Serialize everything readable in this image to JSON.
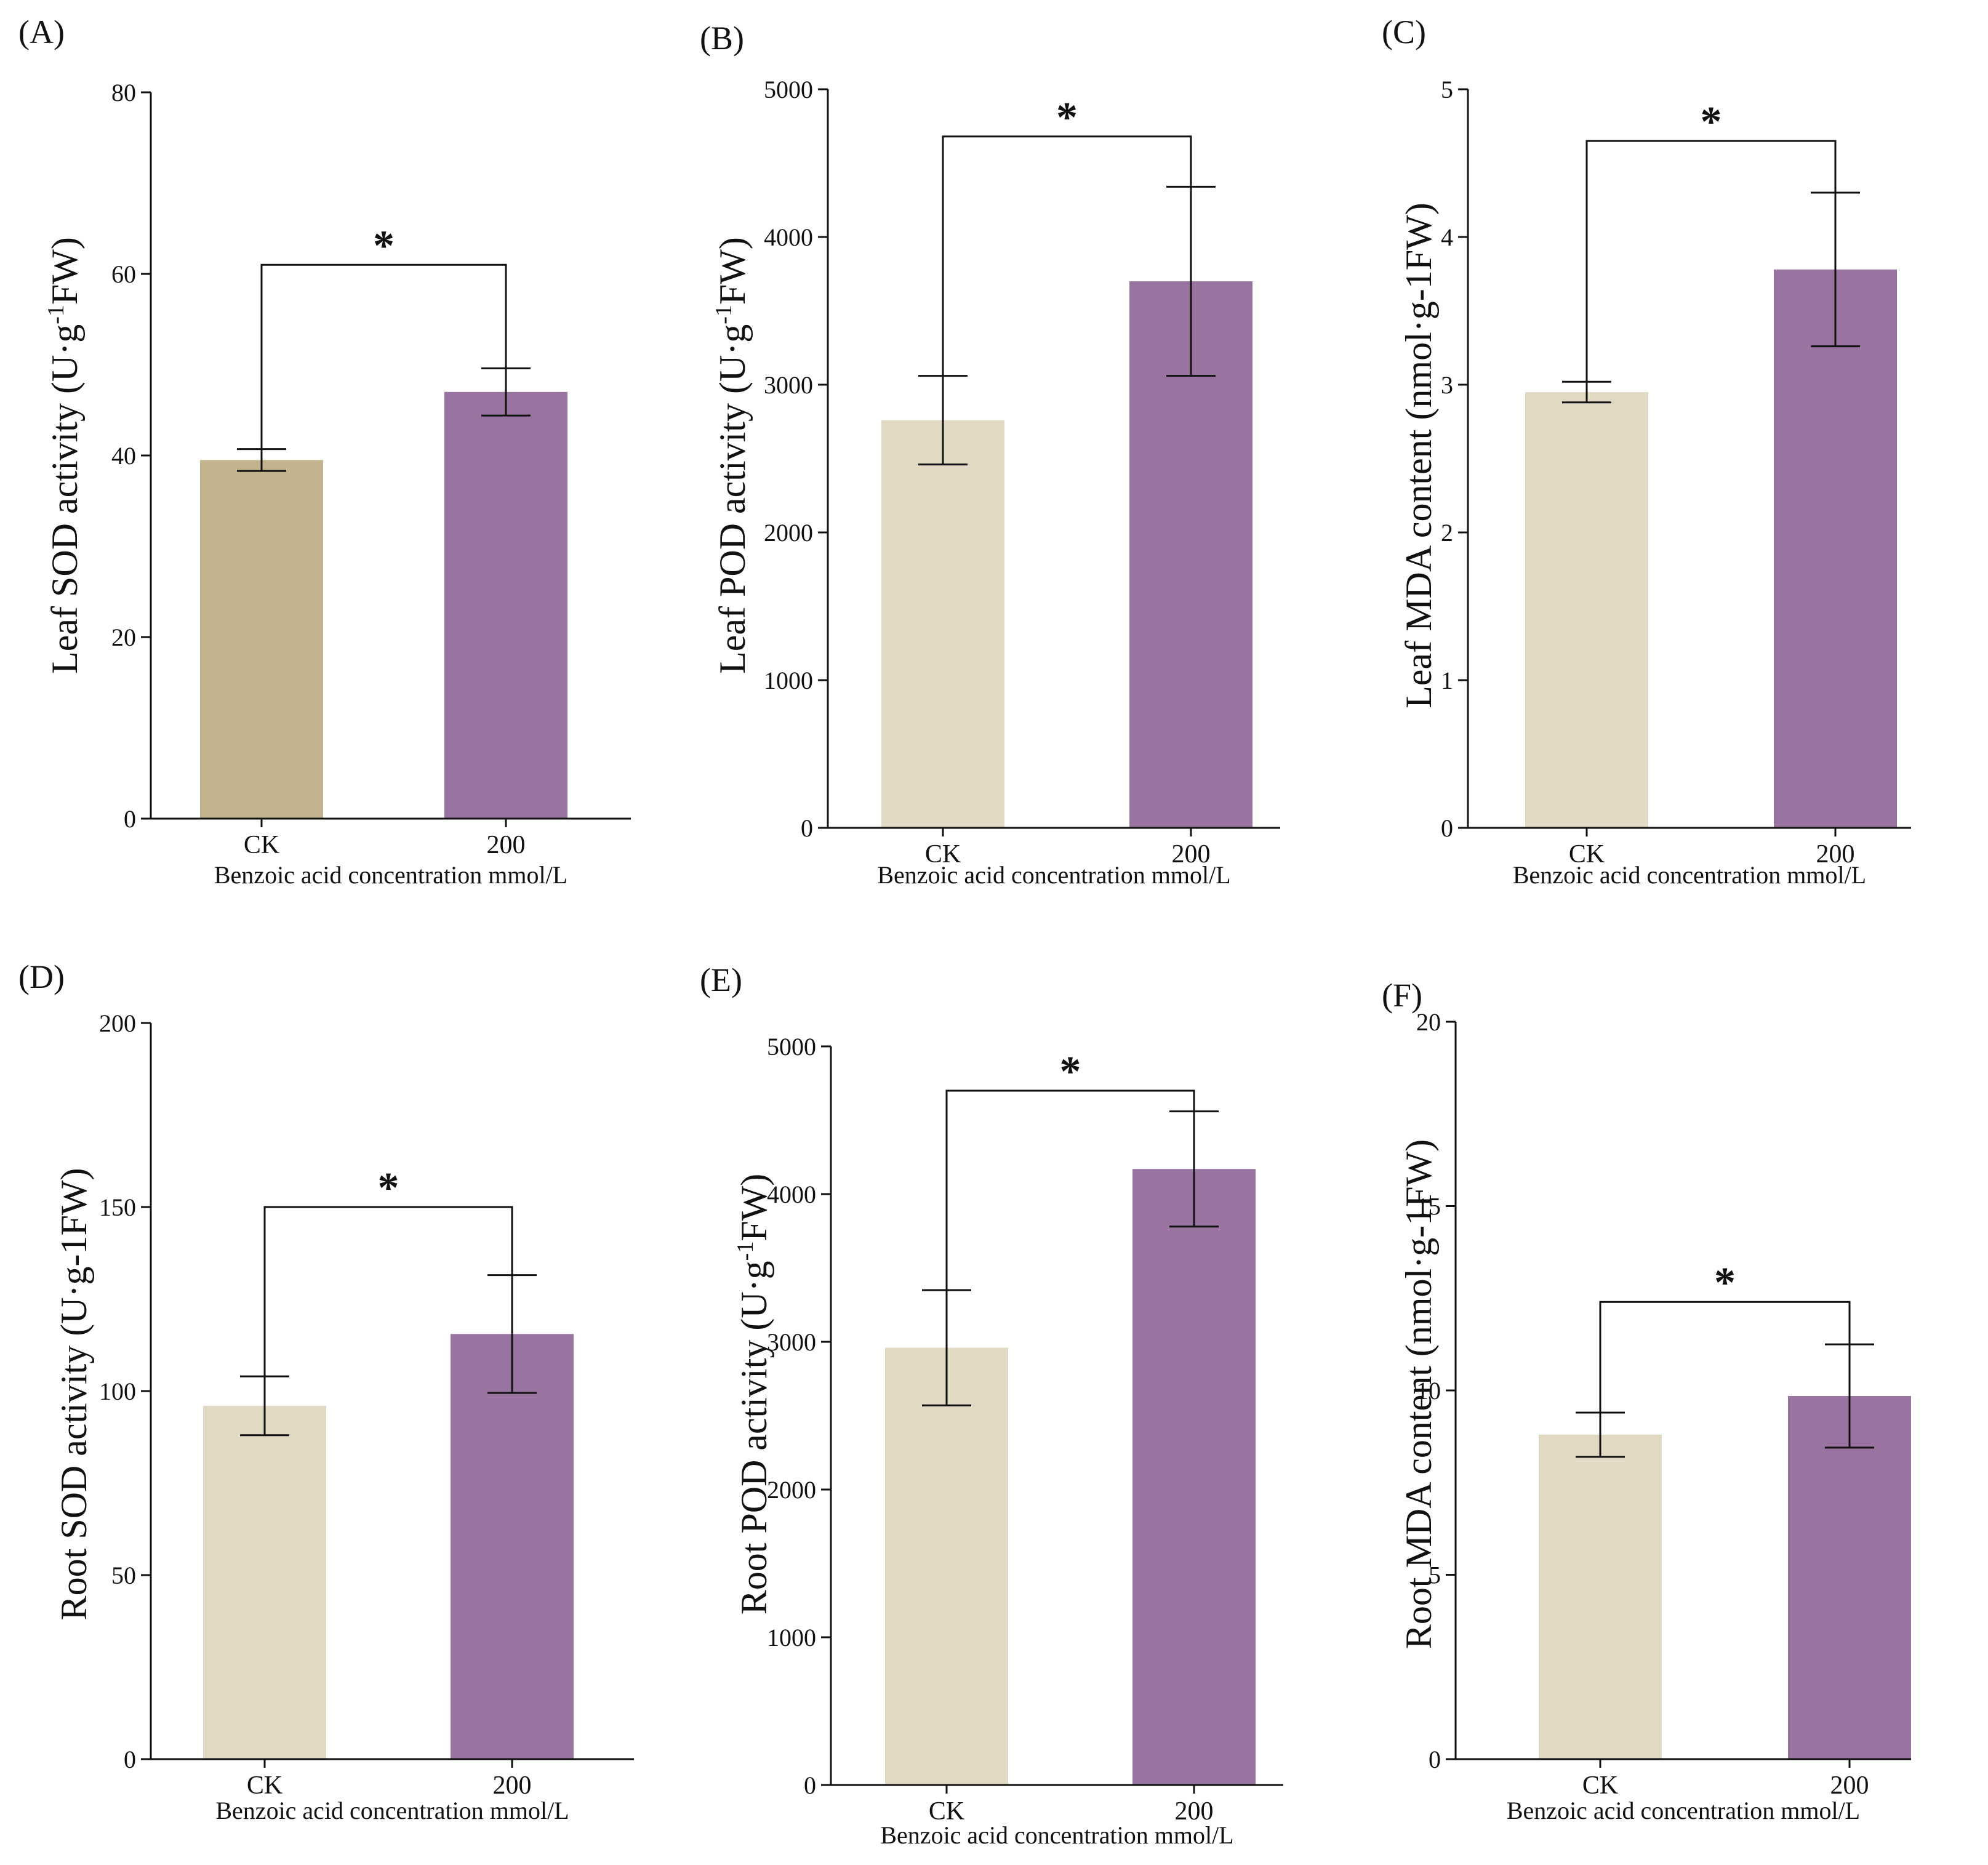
{
  "chart_data": [
    {
      "type": "bar",
      "panel": "(A)",
      "categories": [
        "CK",
        "200"
      ],
      "values": [
        39.5,
        47.0
      ],
      "errors": [
        1.2,
        2.6
      ],
      "colors": [
        "#c2b48c",
        "#9a74a1"
      ],
      "ylabel_main": "Leaf SOD activity (U·g",
      "ylabel_sup": "-1",
      "ylabel_tail": "FW)",
      "xlabel": "Benzoic acid concentration mmol/L",
      "ylim": [
        0,
        80
      ],
      "yticks": [
        0,
        20,
        40,
        60,
        80
      ],
      "significance": "*",
      "bracket_y": 61
    },
    {
      "type": "bar",
      "panel": "(B)",
      "categories": [
        "CK",
        "200"
      ],
      "values": [
        2760,
        3700
      ],
      "errors": [
        300,
        640
      ],
      "colors": [
        "#e2d9c5",
        "#9a74a1"
      ],
      "ylabel_main": "Leaf POD activity (U·g",
      "ylabel_sup": "-1",
      "ylabel_tail": "FW)",
      "xlabel": "Benzoic acid concentration mmol/L",
      "ylim": [
        0,
        5000
      ],
      "yticks": [
        0,
        1000,
        2000,
        3000,
        4000,
        5000
      ],
      "significance": "*",
      "bracket_y": 4680
    },
    {
      "type": "bar",
      "panel": "(C)",
      "categories": [
        "CK",
        "200"
      ],
      "values": [
        2.95,
        3.78
      ],
      "errors": [
        0.07,
        0.52
      ],
      "colors": [
        "#e2d9c5",
        "#9a74a1"
      ],
      "ylabel_main": "Leaf  MDA content (nmol·g-1FW)",
      "ylabel_sup": "",
      "ylabel_tail": "",
      "xlabel": "Benzoic acid concentration mmol/L",
      "ylim": [
        0,
        5
      ],
      "yticks": [
        0,
        1,
        2,
        3,
        4,
        5
      ],
      "significance": "*",
      "bracket_y": 4.65
    },
    {
      "type": "bar",
      "panel": "(D)",
      "categories": [
        "CK",
        "200"
      ],
      "values": [
        96,
        115.5
      ],
      "errors": [
        8,
        16
      ],
      "colors": [
        "#e2d9c5",
        "#9a74a1"
      ],
      "ylabel_main": "Root SOD activity (U·g-1FW)",
      "ylabel_sup": "",
      "ylabel_tail": "",
      "xlabel": "Benzoic acid concentration mmol/L",
      "ylim": [
        0,
        200
      ],
      "yticks": [
        0,
        50,
        100,
        150,
        200
      ],
      "significance": "*",
      "bracket_y": 150
    },
    {
      "type": "bar",
      "panel": "(E)",
      "categories": [
        "CK",
        "200"
      ],
      "values": [
        2960,
        4170
      ],
      "errors": [
        390,
        390
      ],
      "colors": [
        "#e2d9c5",
        "#9a74a1"
      ],
      "ylabel_main": "Root POD activity (U·g",
      "ylabel_sup": "-1",
      "ylabel_tail": "FW)",
      "xlabel": "Benzoic acid concentration mmol/L",
      "ylim": [
        0,
        5000
      ],
      "yticks": [
        0,
        1000,
        2000,
        3000,
        4000,
        5000
      ],
      "significance": "*",
      "bracket_y": 4700
    },
    {
      "type": "bar",
      "panel": "(F)",
      "categories": [
        "CK",
        "200"
      ],
      "values": [
        8.8,
        9.85
      ],
      "errors": [
        0.6,
        1.4
      ],
      "colors": [
        "#e2d9c5",
        "#9a74a1"
      ],
      "ylabel_main": "Root MDA content (nmol·g-1FW)",
      "ylabel_sup": "",
      "ylabel_tail": "",
      "xlabel": "Benzoic acid concentration mmol/L",
      "ylim": [
        0,
        20
      ],
      "yticks": [
        0,
        5,
        10,
        15,
        20
      ],
      "significance": "*",
      "bracket_y": 12.4
    }
  ]
}
